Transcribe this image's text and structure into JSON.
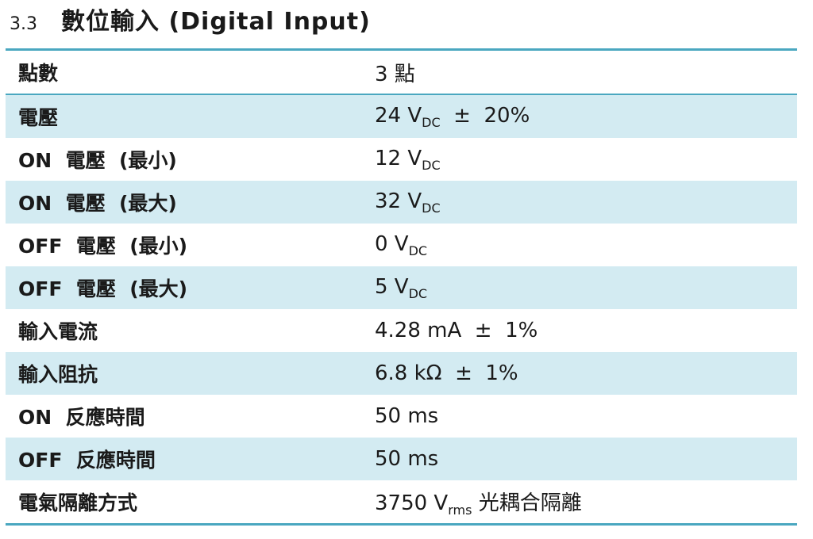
{
  "section": {
    "number": "3.3",
    "title": "數位輸入  (Digital Input)"
  },
  "rows": [
    {
      "label": "點數",
      "value": "3 點",
      "shaded": false
    },
    {
      "label": "電壓",
      "value_main": "24 V",
      "value_sub": "DC",
      "value_tail": "  ±  20%",
      "shaded": true
    },
    {
      "label": "ON  電壓  (最小)",
      "value_main": "12 V",
      "value_sub": "DC",
      "value_tail": "",
      "shaded": false
    },
    {
      "label": "ON  電壓  (最大)",
      "value_main": "32 V",
      "value_sub": "DC",
      "value_tail": "",
      "shaded": true
    },
    {
      "label": "OFF  電壓  (最小)",
      "value_main": "0 V",
      "value_sub": "DC",
      "value_tail": "",
      "shaded": false
    },
    {
      "label": "OFF  電壓  (最大)",
      "value_main": "5 V",
      "value_sub": "DC",
      "value_tail": "",
      "shaded": true
    },
    {
      "label": "輸入電流",
      "value": "4.28 mA  ±  1%",
      "shaded": false
    },
    {
      "label": "輸入阻抗",
      "value": "6.8 kΩ  ±  1%",
      "shaded": true
    },
    {
      "label": "ON  反應時間",
      "value": "50 ms",
      "shaded": false
    },
    {
      "label": "OFF  反應時間",
      "value": "50 ms",
      "shaded": true
    },
    {
      "label": "電氣隔離方式",
      "value_main": "3750 V",
      "value_sub": "rms",
      "value_tail": " 光耦合隔離",
      "shaded": false
    }
  ],
  "colors": {
    "rule": "#4aa7c0",
    "shade": "#d3ebf2",
    "text": "#1a1a1a"
  }
}
